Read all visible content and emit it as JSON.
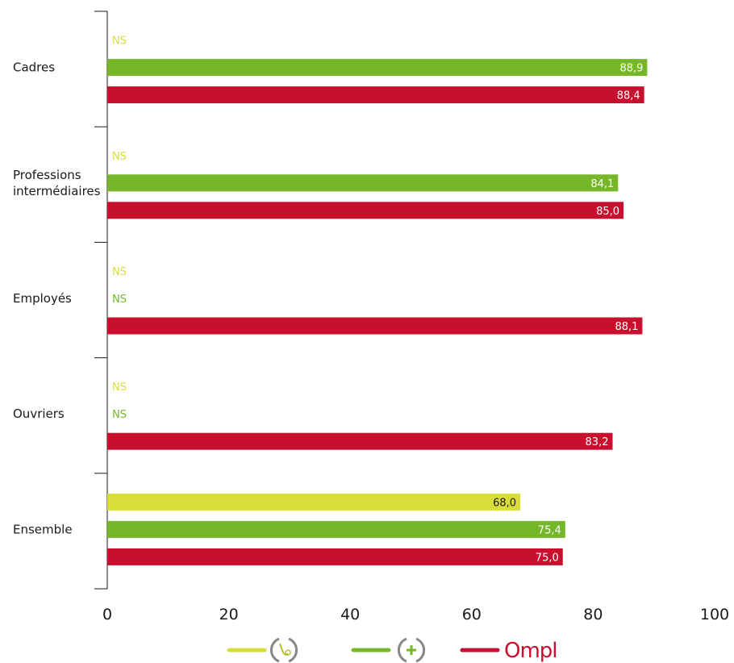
{
  "chart_data": {
    "type": "bar",
    "orientation": "horizontal",
    "categories": [
      "Cadres",
      "Professions intermédiaires",
      "Employés",
      "Ouvriers",
      "Ensemble"
    ],
    "category_lines": [
      [
        "Cadres"
      ],
      [
        "Professions",
        "intermédiaires"
      ],
      [
        "Employés"
      ],
      [
        "Ouvriers"
      ],
      [
        "Ensemble"
      ]
    ],
    "series": [
      {
        "legend_icon": "stethoscope-circle-icon",
        "color": "#d9dd3a",
        "values": [
          null,
          null,
          null,
          null,
          68.0
        ],
        "labels": [
          "NS",
          "NS",
          "NS",
          "NS",
          "68,0"
        ]
      },
      {
        "legend_icon": "plus-circle-icon",
        "color": "#76b72a",
        "values": [
          88.9,
          84.1,
          null,
          null,
          75.4
        ],
        "labels": [
          "88,9",
          "84,1",
          "NS",
          "NS",
          "75,4"
        ]
      },
      {
        "legend_text": "Ompl",
        "color": "#c8102e",
        "values": [
          88.4,
          85.0,
          88.1,
          83.2,
          75.0
        ],
        "labels": [
          "88,4",
          "85,0",
          "88,1",
          "83,2",
          "75,0"
        ]
      }
    ],
    "xlim": [
      0,
      100
    ],
    "xticks": [
      "0",
      "20",
      "40",
      "60",
      "80",
      "100"
    ],
    "grid": false,
    "legend_position": "bottom"
  }
}
